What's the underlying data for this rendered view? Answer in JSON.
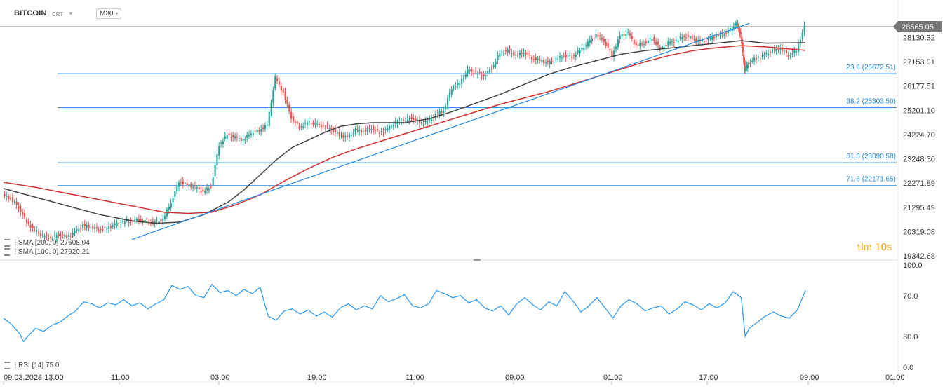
{
  "header": {
    "symbol": "BITCOIN",
    "type": "CRT",
    "timeframe": "M30"
  },
  "timer": {
    "glyph": "ป",
    "label": "m 10s"
  },
  "colors": {
    "price_line": "#555555",
    "sma100": "#444444",
    "sma200": "#d32f2f",
    "fib": "#1e88e5",
    "trendline": "#1e88e5",
    "rsi": "#2196f3",
    "up": "#26a69a",
    "down": "#ef5350",
    "current_price_bg": "#777777"
  },
  "indicators": {
    "sma200_label": "SMA [200, 0]",
    "sma200_value": "27608.04",
    "sma100_label": "SMA [100, 0]",
    "sma100_value": "27920.21",
    "rsi_label": "RSI [14]",
    "rsi_value": "75.0"
  },
  "chart_data": [
    {
      "type": "candlestick",
      "title": "",
      "current_price": "28565.05",
      "y_ticks": [
        "28130.32",
        "27153.91",
        "26177.51",
        "25201.10",
        "24224.70",
        "23248.30",
        "22271.89",
        "21295.49",
        "20319.08",
        "19342.68"
      ],
      "ylim": [
        19342.68,
        28565.05
      ],
      "x_ticks": [
        "09.03.2023 13:00",
        "11:00",
        "03:00",
        "19:00",
        "11:00",
        "09:00",
        "01:00",
        "17:00",
        "09:00",
        "01:00"
      ],
      "fib_levels": [
        {
          "label": "23.6 (26672.51)",
          "value": 26672.51
        },
        {
          "label": "38.2 (25303.50)",
          "value": 25303.5
        },
        {
          "label": "61.8 (23090.58)",
          "value": 23090.58
        },
        {
          "label": "71.6 (22171.65)",
          "value": 22171.65
        }
      ],
      "trendline": {
        "from": [
          0.16,
          20000
        ],
        "to": [
          1.0,
          28980
        ]
      },
      "close_path": [
        [
          0.0,
          21780
        ],
        [
          0.01,
          21650
        ],
        [
          0.02,
          21300
        ],
        [
          0.03,
          20700
        ],
        [
          0.04,
          20350
        ],
        [
          0.05,
          20150
        ],
        [
          0.06,
          20050
        ],
        [
          0.07,
          20200
        ],
        [
          0.08,
          20100
        ],
        [
          0.09,
          20300
        ],
        [
          0.1,
          20550
        ],
        [
          0.11,
          20500
        ],
        [
          0.12,
          20400
        ],
        [
          0.13,
          20450
        ],
        [
          0.14,
          20600
        ],
        [
          0.15,
          20700
        ],
        [
          0.16,
          20750
        ],
        [
          0.17,
          20800
        ],
        [
          0.18,
          20700
        ],
        [
          0.19,
          20680
        ],
        [
          0.2,
          20800
        ],
        [
          0.21,
          21500
        ],
        [
          0.22,
          22350
        ],
        [
          0.23,
          22200
        ],
        [
          0.24,
          22100
        ],
        [
          0.25,
          21900
        ],
        [
          0.26,
          22150
        ],
        [
          0.27,
          23800
        ],
        [
          0.28,
          24200
        ],
        [
          0.29,
          24100
        ],
        [
          0.3,
          24000
        ],
        [
          0.31,
          24300
        ],
        [
          0.32,
          24400
        ],
        [
          0.33,
          24600
        ],
        [
          0.34,
          26500
        ],
        [
          0.35,
          25900
        ],
        [
          0.36,
          24900
        ],
        [
          0.37,
          24500
        ],
        [
          0.38,
          24700
        ],
        [
          0.39,
          24650
        ],
        [
          0.4,
          24550
        ],
        [
          0.41,
          24450
        ],
        [
          0.42,
          24200
        ],
        [
          0.43,
          24100
        ],
        [
          0.44,
          24400
        ],
        [
          0.45,
          24350
        ],
        [
          0.46,
          24500
        ],
        [
          0.47,
          24300
        ],
        [
          0.48,
          24450
        ],
        [
          0.49,
          24700
        ],
        [
          0.5,
          24800
        ],
        [
          0.51,
          24900
        ],
        [
          0.52,
          24700
        ],
        [
          0.53,
          24750
        ],
        [
          0.54,
          25000
        ],
        [
          0.55,
          25200
        ],
        [
          0.56,
          26100
        ],
        [
          0.57,
          26300
        ],
        [
          0.58,
          26800
        ],
        [
          0.59,
          26700
        ],
        [
          0.6,
          26600
        ],
        [
          0.61,
          26900
        ],
        [
          0.62,
          27500
        ],
        [
          0.63,
          27600
        ],
        [
          0.64,
          27400
        ],
        [
          0.65,
          27550
        ],
        [
          0.66,
          27300
        ],
        [
          0.67,
          27200
        ],
        [
          0.68,
          27100
        ],
        [
          0.69,
          27250
        ],
        [
          0.7,
          27400
        ],
        [
          0.71,
          27350
        ],
        [
          0.72,
          27600
        ],
        [
          0.73,
          27900
        ],
        [
          0.74,
          28250
        ],
        [
          0.75,
          28000
        ],
        [
          0.76,
          27400
        ],
        [
          0.77,
          28200
        ],
        [
          0.78,
          28300
        ],
        [
          0.79,
          27800
        ],
        [
          0.8,
          27900
        ],
        [
          0.81,
          28100
        ],
        [
          0.82,
          27700
        ],
        [
          0.83,
          27900
        ],
        [
          0.84,
          28000
        ],
        [
          0.85,
          28200
        ],
        [
          0.86,
          28100
        ],
        [
          0.87,
          27950
        ],
        [
          0.88,
          28050
        ],
        [
          0.89,
          28200
        ],
        [
          0.9,
          28300
        ],
        [
          0.91,
          28500
        ],
        [
          0.915,
          28700
        ],
        [
          0.92,
          28200
        ],
        [
          0.925,
          26800
        ],
        [
          0.93,
          27100
        ],
        [
          0.94,
          27300
        ],
        [
          0.95,
          27400
        ],
        [
          0.96,
          27600
        ],
        [
          0.97,
          27700
        ],
        [
          0.98,
          27400
        ],
        [
          0.99,
          27600
        ],
        [
          1.0,
          28565
        ]
      ],
      "sma100_path": [
        [
          0.0,
          22050
        ],
        [
          0.04,
          21700
        ],
        [
          0.08,
          21350
        ],
        [
          0.12,
          21000
        ],
        [
          0.16,
          20750
        ],
        [
          0.19,
          20650
        ],
        [
          0.22,
          20700
        ],
        [
          0.25,
          21000
        ],
        [
          0.28,
          21500
        ],
        [
          0.3,
          22000
        ],
        [
          0.32,
          22600
        ],
        [
          0.34,
          23200
        ],
        [
          0.36,
          23700
        ],
        [
          0.38,
          24000
        ],
        [
          0.4,
          24300
        ],
        [
          0.42,
          24550
        ],
        [
          0.44,
          24650
        ],
        [
          0.46,
          24700
        ],
        [
          0.5,
          24700
        ],
        [
          0.53,
          24850
        ],
        [
          0.56,
          25150
        ],
        [
          0.59,
          25500
        ],
        [
          0.62,
          25850
        ],
        [
          0.65,
          26250
        ],
        [
          0.68,
          26650
        ],
        [
          0.71,
          26950
        ],
        [
          0.74,
          27200
        ],
        [
          0.77,
          27450
        ],
        [
          0.8,
          27600
        ],
        [
          0.83,
          27700
        ],
        [
          0.86,
          27800
        ],
        [
          0.89,
          27900
        ],
        [
          0.92,
          28000
        ],
        [
          0.95,
          27900
        ],
        [
          1.0,
          27920
        ]
      ],
      "sma200_path": [
        [
          0.0,
          22300
        ],
        [
          0.04,
          22100
        ],
        [
          0.08,
          21850
        ],
        [
          0.12,
          21600
        ],
        [
          0.16,
          21350
        ],
        [
          0.2,
          21100
        ],
        [
          0.23,
          21050
        ],
        [
          0.26,
          21100
        ],
        [
          0.29,
          21400
        ],
        [
          0.32,
          21800
        ],
        [
          0.35,
          22350
        ],
        [
          0.38,
          22850
        ],
        [
          0.41,
          23300
        ],
        [
          0.44,
          23650
        ],
        [
          0.47,
          23950
        ],
        [
          0.5,
          24250
        ],
        [
          0.53,
          24550
        ],
        [
          0.56,
          24850
        ],
        [
          0.59,
          25150
        ],
        [
          0.62,
          25450
        ],
        [
          0.65,
          25700
        ],
        [
          0.68,
          25950
        ],
        [
          0.71,
          26250
        ],
        [
          0.74,
          26550
        ],
        [
          0.77,
          26850
        ],
        [
          0.8,
          27150
        ],
        [
          0.83,
          27400
        ],
        [
          0.86,
          27600
        ],
        [
          0.89,
          27720
        ],
        [
          0.92,
          27800
        ],
        [
          0.95,
          27750
        ],
        [
          1.0,
          27608
        ]
      ]
    },
    {
      "type": "line",
      "title": "",
      "y_ticks": [
        "100.0",
        "70.0",
        "30.0",
        "0.0"
      ],
      "ylim": [
        0,
        100
      ],
      "series": [
        {
          "name": "RSI [14]",
          "points": [
            [
              0.0,
              48
            ],
            [
              0.01,
              42
            ],
            [
              0.02,
              33
            ],
            [
              0.025,
              25
            ],
            [
              0.03,
              30
            ],
            [
              0.04,
              38
            ],
            [
              0.05,
              35
            ],
            [
              0.06,
              41
            ],
            [
              0.07,
              44
            ],
            [
              0.08,
              50
            ],
            [
              0.09,
              55
            ],
            [
              0.1,
              64
            ],
            [
              0.11,
              62
            ],
            [
              0.12,
              58
            ],
            [
              0.13,
              63
            ],
            [
              0.14,
              61
            ],
            [
              0.15,
              66
            ],
            [
              0.16,
              60
            ],
            [
              0.17,
              63
            ],
            [
              0.18,
              57
            ],
            [
              0.19,
              62
            ],
            [
              0.2,
              66
            ],
            [
              0.21,
              80
            ],
            [
              0.22,
              76
            ],
            [
              0.23,
              79
            ],
            [
              0.24,
              70
            ],
            [
              0.25,
              68
            ],
            [
              0.26,
              81
            ],
            [
              0.27,
              73
            ],
            [
              0.28,
              75
            ],
            [
              0.29,
              70
            ],
            [
              0.3,
              76
            ],
            [
              0.31,
              72
            ],
            [
              0.32,
              78
            ],
            [
              0.33,
              50
            ],
            [
              0.34,
              46
            ],
            [
              0.35,
              55
            ],
            [
              0.36,
              57
            ],
            [
              0.37,
              52
            ],
            [
              0.38,
              56
            ],
            [
              0.39,
              50
            ],
            [
              0.4,
              54
            ],
            [
              0.41,
              49
            ],
            [
              0.42,
              58
            ],
            [
              0.43,
              62
            ],
            [
              0.44,
              56
            ],
            [
              0.45,
              60
            ],
            [
              0.46,
              57
            ],
            [
              0.47,
              70
            ],
            [
              0.48,
              64
            ],
            [
              0.49,
              67
            ],
            [
              0.5,
              71
            ],
            [
              0.51,
              60
            ],
            [
              0.52,
              58
            ],
            [
              0.53,
              62
            ],
            [
              0.54,
              75
            ],
            [
              0.55,
              72
            ],
            [
              0.56,
              68
            ],
            [
              0.57,
              70
            ],
            [
              0.58,
              63
            ],
            [
              0.59,
              66
            ],
            [
              0.6,
              58
            ],
            [
              0.61,
              55
            ],
            [
              0.62,
              60
            ],
            [
              0.63,
              51
            ],
            [
              0.64,
              62
            ],
            [
              0.65,
              68
            ],
            [
              0.66,
              61
            ],
            [
              0.67,
              56
            ],
            [
              0.68,
              64
            ],
            [
              0.69,
              60
            ],
            [
              0.7,
              74
            ],
            [
              0.71,
              65
            ],
            [
              0.72,
              54
            ],
            [
              0.73,
              60
            ],
            [
              0.74,
              68
            ],
            [
              0.75,
              58
            ],
            [
              0.76,
              48
            ],
            [
              0.77,
              60
            ],
            [
              0.78,
              66
            ],
            [
              0.79,
              62
            ],
            [
              0.8,
              55
            ],
            [
              0.81,
              58
            ],
            [
              0.82,
              60
            ],
            [
              0.83,
              52
            ],
            [
              0.84,
              57
            ],
            [
              0.85,
              64
            ],
            [
              0.86,
              61
            ],
            [
              0.87,
              56
            ],
            [
              0.88,
              62
            ],
            [
              0.89,
              58
            ],
            [
              0.9,
              63
            ],
            [
              0.91,
              74
            ],
            [
              0.92,
              68
            ],
            [
              0.925,
              30
            ],
            [
              0.93,
              38
            ],
            [
              0.94,
              44
            ],
            [
              0.95,
              50
            ],
            [
              0.96,
              54
            ],
            [
              0.97,
              50
            ],
            [
              0.98,
              48
            ],
            [
              0.99,
              56
            ],
            [
              1.0,
              75
            ]
          ]
        }
      ]
    }
  ]
}
